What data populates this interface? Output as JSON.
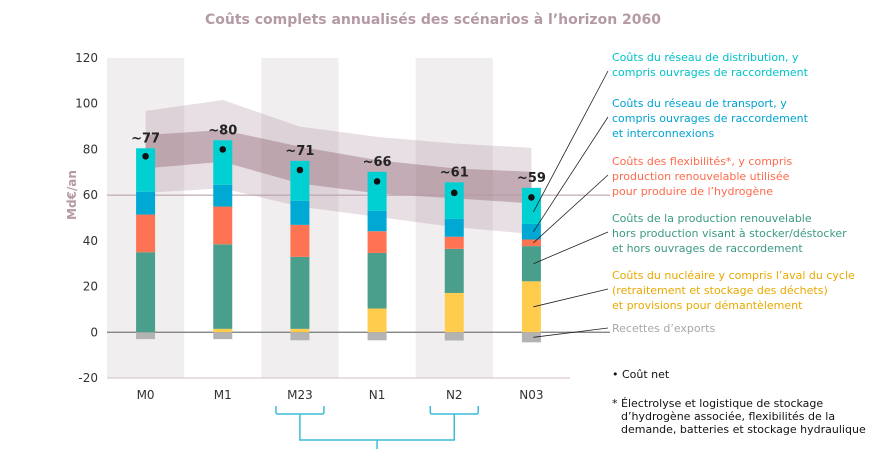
{
  "chart_data": {
    "type": "bar",
    "stacked": true,
    "title": "Coûts complets annualisés des scénarios à l’horizon 2060",
    "xlabel": "",
    "ylabel": "Md€/an",
    "ylim": [
      -20,
      120
    ],
    "yticks": [
      120,
      100,
      80,
      60,
      40,
      20,
      0,
      -20
    ],
    "ytick_labels": [
      "120",
      "100",
      "80",
      "60",
      "40",
      "20",
      "0",
      "-20"
    ],
    "reference_line": 60,
    "categories": [
      "M0",
      "M1",
      "M23",
      "N1",
      "N2",
      "N03"
    ],
    "shaded_columns": [
      "M0",
      "M23",
      "N2"
    ],
    "series": [
      {
        "name": "Coûts du nucléaire y compris l’aval du cycle (retraitement et stockage des déchets) et provisions pour démantèlement",
        "color": "#ffcc4d",
        "text_color": "#e8a900",
        "values": [
          0,
          1.5,
          1.5,
          10.4,
          17.2,
          22.3
        ]
      },
      {
        "name": "Coûts de la production renouvelable hors production visant à stocker/déstocker et hors ouvrages de raccordement",
        "color": "#4a9e8c",
        "text_color": "#3c9a84",
        "values": [
          35,
          37,
          31.5,
          24.3,
          19.3,
          15.4
        ]
      },
      {
        "name": "Coûts des flexibilités*, y compris production renouvelable utilisée pour produire de l’hydrogène",
        "color": "#ff7355",
        "text_color": "#ff6a4d",
        "values": [
          16.5,
          16.5,
          14,
          9.5,
          5.3,
          2.9
        ]
      },
      {
        "name": "Coûts du réseau de transport, y compris ouvrages de raccordement et interconnexions",
        "color": "#00a9d4",
        "text_color": "#00a3d2",
        "values": [
          10,
          9.5,
          10.5,
          9,
          7.8,
          6.8
        ]
      },
      {
        "name": "Coûts du réseau de distribution, y compris ouvrages de raccordement",
        "color": "#00d0d2",
        "text_color": "#00c2c8",
        "values": [
          19,
          19.5,
          17.5,
          17,
          16,
          15.8
        ]
      },
      {
        "name": "Recettes d’exports",
        "color": "#b3b3b3",
        "text_color": "#a8a8a8",
        "values": [
          -3,
          -3,
          -3.5,
          -3.5,
          -3.6,
          -4.4
        ]
      }
    ],
    "net_cost": {
      "name": "Coût net",
      "values": [
        77,
        80,
        71,
        66,
        61,
        59
      ],
      "labels": [
        "~77",
        "~80",
        "~71",
        "~66",
        "~61",
        "~59"
      ]
    },
    "bands": {
      "outer": {
        "upper": [
          96.8,
          101.6,
          90,
          85.5,
          82.6,
          80.7
        ],
        "lower": [
          61,
          63,
          55,
          50.5,
          46,
          43
        ]
      },
      "inner": {
        "upper": [
          86.3,
          88.5,
          81.2,
          75.3,
          71.7,
          70.2
        ],
        "lower": [
          71.7,
          74.6,
          65.1,
          60.8,
          58.6,
          56.4
        ]
      }
    },
    "legend_position": "right",
    "legend_order": [
      4,
      3,
      2,
      1,
      0,
      5
    ],
    "net_legend": "• Coût net",
    "footnote": [
      "* Électrolyse et logistique de stockage",
      "d’hydrogène associée, flexibilités de la",
      "demande, batteries et stockage hydraulique"
    ],
    "grouping_bracket": [
      "M23",
      "N2"
    ],
    "grid": false
  }
}
